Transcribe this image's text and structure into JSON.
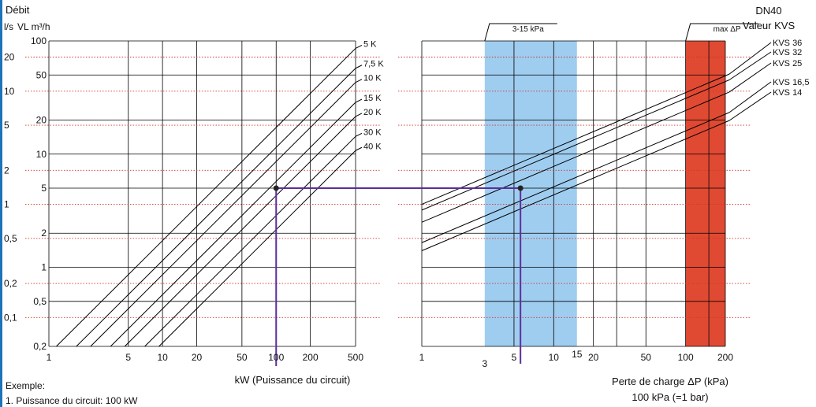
{
  "chart_data": [
    {
      "type": "line",
      "axis_header_title": "Débit",
      "left_axis_units": [
        "l/s",
        "VL m³/h"
      ],
      "xlabel": "kW (Puissance du circuit)",
      "x_ticks": [
        "1",
        "5",
        "10",
        "20",
        "50",
        "100",
        "200",
        "500"
      ],
      "x_tick_values": [
        1,
        5,
        10,
        20,
        50,
        100,
        200,
        500
      ],
      "xlim": [
        1,
        500
      ],
      "y_ticks_m3h": [
        "100",
        "50",
        "20",
        "10",
        "5",
        "2",
        "1",
        "0,5",
        "0,2"
      ],
      "y_tick_values_m3h": [
        100,
        50,
        20,
        10,
        5,
        2,
        1,
        0.5,
        0.2
      ],
      "y_ticks_ls": [
        "20",
        "10",
        "5",
        "2",
        "1",
        "0,5",
        "0,2",
        "0,1"
      ],
      "y_tick_values_ls": [
        20,
        10,
        5,
        2,
        1,
        0.5,
        0.2,
        0.1
      ],
      "ylim_m3h": [
        0.2,
        100
      ],
      "scale": "log-log",
      "grid": true,
      "series": [
        {
          "name": "5 K",
          "delta_T": 5
        },
        {
          "name": "7,5 K",
          "delta_T": 7.5
        },
        {
          "name": "10 K",
          "delta_T": 10
        },
        {
          "name": "15 K",
          "delta_T": 15
        },
        {
          "name": "20 K",
          "delta_T": 20
        },
        {
          "name": "30 K",
          "delta_T": 30
        },
        {
          "name": "40 K",
          "delta_T": 40
        }
      ],
      "example_point": {
        "x_kw": 100,
        "y_m3h": 5
      }
    },
    {
      "type": "line",
      "header_title": "DN40",
      "header_subtitle": "Valeur KVS",
      "xlabel": "Perte de charge ΔP (kPa)",
      "xlabel_note": "100 kPa (=1 bar)",
      "x_ticks": [
        "1",
        "5",
        "10",
        "20",
        "50",
        "100",
        "200"
      ],
      "x_tick_values": [
        1,
        5,
        10,
        20,
        50,
        100,
        200
      ],
      "x_marker_ticks": [
        "3",
        "15"
      ],
      "x_marker_values": [
        3,
        15
      ],
      "xlim": [
        1,
        200
      ],
      "scale": "log-log",
      "grid": true,
      "series": [
        {
          "name": "KVS 36",
          "kvs": 36
        },
        {
          "name": "KVS 32",
          "kvs": 32
        },
        {
          "name": "KVS 25",
          "kvs": 25
        },
        {
          "name": "KVS 16,5",
          "kvs": 16.5
        },
        {
          "name": "KVS 14",
          "kvs": 14
        }
      ],
      "bands": [
        {
          "label": "3-15 kPa",
          "from": 3,
          "to": 15,
          "color": "#9fcdf0"
        },
        {
          "label": "max ΔP",
          "from": 100,
          "to": 200,
          "color": "#e04a33"
        }
      ],
      "example_point": {
        "dp_kpa": 5.6,
        "y_m3h": 5
      }
    }
  ],
  "example": {
    "title": "Exemple:",
    "line1": "1. Puissance du circuit: 100 kW"
  },
  "colors": {
    "grid": "#000000",
    "minor_dotted": "#d0342c",
    "curves": "#000000",
    "example_path": "#5b2f9a",
    "blue_band": "#9fcdf0",
    "red_band": "#e04a33",
    "accent_bar": "#1d74b9"
  }
}
